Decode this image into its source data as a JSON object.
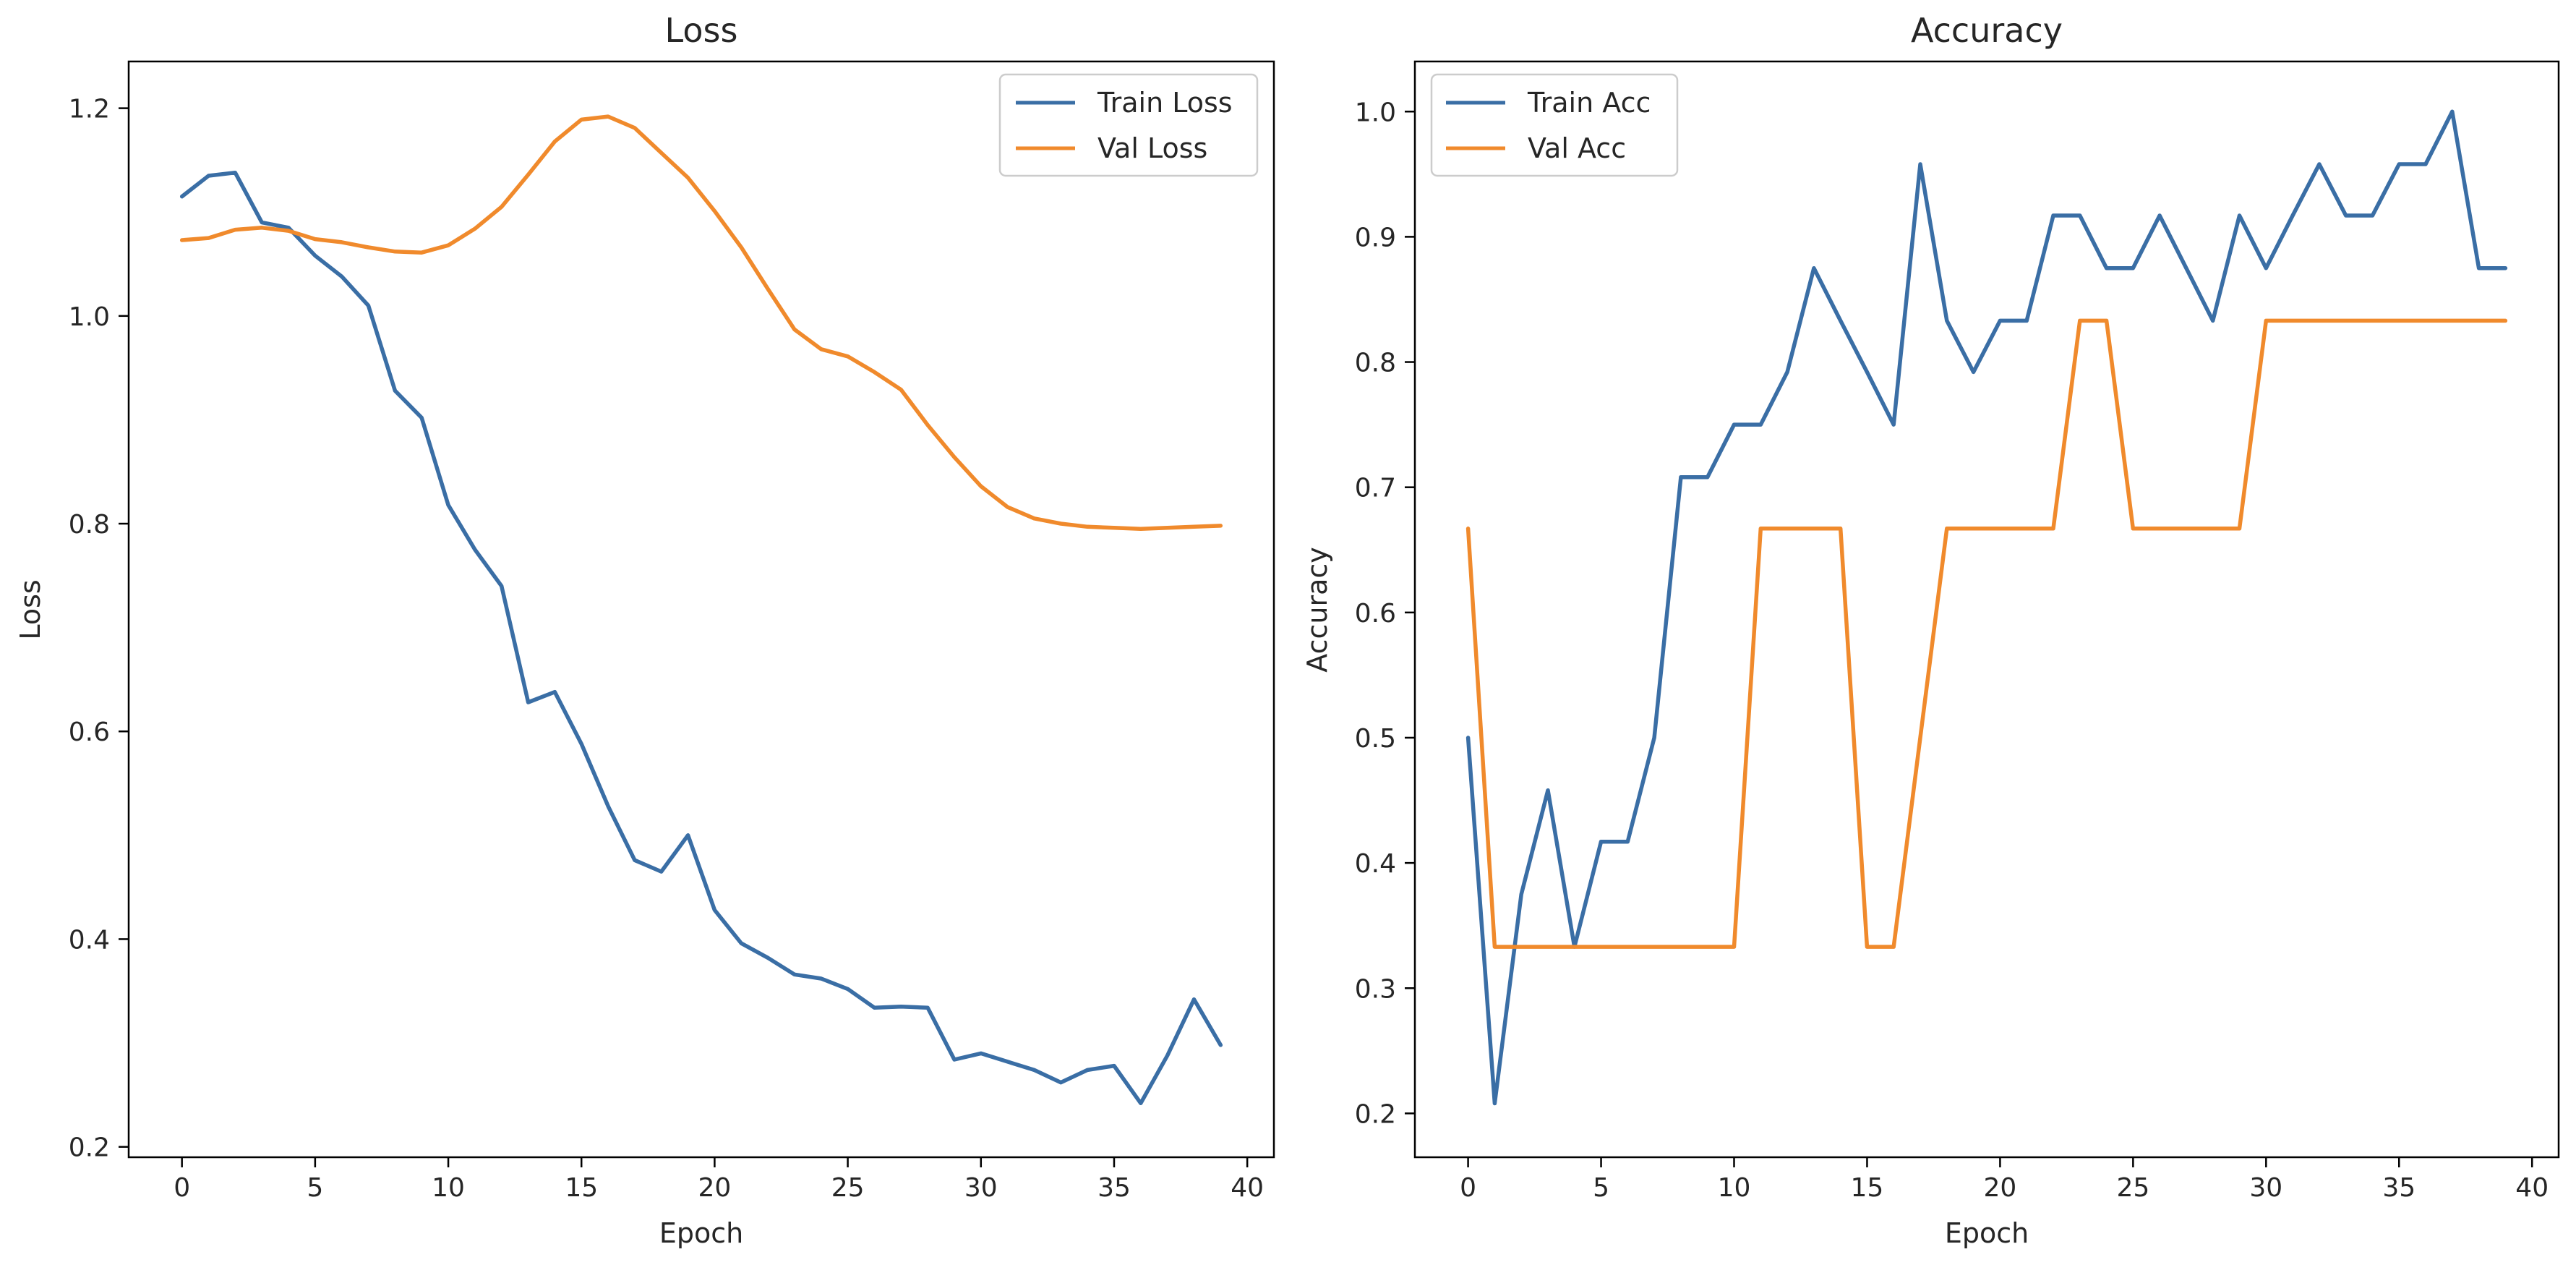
{
  "chart_data": [
    {
      "type": "line",
      "title": "Loss",
      "xlabel": "Epoch",
      "ylabel": "Loss",
      "xlim": [
        -2,
        41
      ],
      "ylim": [
        0.19,
        1.245
      ],
      "grid": false,
      "legend_position": "top-right",
      "x_ticks": [
        0,
        5,
        10,
        15,
        20,
        25,
        30,
        35,
        40
      ],
      "y_ticks": [
        0.2,
        0.4,
        0.6,
        0.8,
        1.0,
        1.2
      ],
      "x_tick_labels": [
        "0",
        "5",
        "10",
        "15",
        "20",
        "25",
        "30",
        "35",
        "40"
      ],
      "y_tick_labels": [
        "0.2",
        "0.4",
        "0.6",
        "0.8",
        "1.0",
        "1.2"
      ],
      "x": [
        0,
        1,
        2,
        3,
        4,
        5,
        6,
        7,
        8,
        9,
        10,
        11,
        12,
        13,
        14,
        15,
        16,
        17,
        18,
        19,
        20,
        21,
        22,
        23,
        24,
        25,
        26,
        27,
        28,
        29,
        30,
        31,
        32,
        33,
        34,
        35,
        36,
        37,
        38,
        39
      ],
      "series": [
        {
          "name": "Train Loss",
          "color": "#3a6ea5",
          "values": [
            1.115,
            1.135,
            1.138,
            1.09,
            1.085,
            1.058,
            1.038,
            1.01,
            0.928,
            0.902,
            0.818,
            0.775,
            0.74,
            0.628,
            0.638,
            0.588,
            0.528,
            0.476,
            0.465,
            0.5,
            0.428,
            0.396,
            0.382,
            0.366,
            0.362,
            0.352,
            0.334,
            0.335,
            0.334,
            0.284,
            0.29,
            0.282,
            0.274,
            0.262,
            0.274,
            0.278,
            0.242,
            0.288,
            0.342,
            0.298
          ]
        },
        {
          "name": "Val Loss",
          "color": "#f08a2c",
          "values": [
            1.073,
            1.075,
            1.083,
            1.085,
            1.082,
            1.074,
            1.071,
            1.066,
            1.062,
            1.061,
            1.068,
            1.084,
            1.105,
            1.136,
            1.168,
            1.189,
            1.192,
            1.181,
            1.157,
            1.133,
            1.101,
            1.066,
            1.026,
            0.987,
            0.968,
            0.961,
            0.946,
            0.929,
            0.895,
            0.864,
            0.836,
            0.816,
            0.805,
            0.8,
            0.797,
            0.796,
            0.795,
            0.796,
            0.797,
            0.798
          ]
        }
      ]
    },
    {
      "type": "line",
      "title": "Accuracy",
      "xlabel": "Epoch",
      "ylabel": "Accuracy",
      "xlim": [
        -2,
        41
      ],
      "ylim": [
        0.165,
        1.04
      ],
      "grid": false,
      "legend_position": "top-left",
      "x_ticks": [
        0,
        5,
        10,
        15,
        20,
        25,
        30,
        35,
        40
      ],
      "y_ticks": [
        0.2,
        0.3,
        0.4,
        0.5,
        0.6,
        0.7,
        0.8,
        0.9,
        1.0
      ],
      "x_tick_labels": [
        "0",
        "5",
        "10",
        "15",
        "20",
        "25",
        "30",
        "35",
        "40"
      ],
      "y_tick_labels": [
        "0.2",
        "0.3",
        "0.4",
        "0.5",
        "0.6",
        "0.7",
        "0.8",
        "0.9",
        "1.0"
      ],
      "x": [
        0,
        1,
        2,
        3,
        4,
        5,
        6,
        7,
        8,
        9,
        10,
        11,
        12,
        13,
        14,
        15,
        16,
        17,
        18,
        19,
        20,
        21,
        22,
        23,
        24,
        25,
        26,
        27,
        28,
        29,
        30,
        31,
        32,
        33,
        34,
        35,
        36,
        37,
        38,
        39
      ],
      "series": [
        {
          "name": "Train Acc",
          "color": "#3a6ea5",
          "values": [
            0.5,
            0.208,
            0.375,
            0.458,
            0.333,
            0.417,
            0.417,
            0.5,
            0.708,
            0.708,
            0.75,
            0.75,
            0.792,
            0.875,
            0.833,
            0.792,
            0.75,
            0.958,
            0.833,
            0.792,
            0.833,
            0.833,
            0.917,
            0.917,
            0.875,
            0.875,
            0.917,
            0.875,
            0.833,
            0.917,
            0.875,
            0.917,
            0.958,
            0.917,
            0.917,
            0.958,
            0.958,
            1.0,
            0.875,
            0.875
          ]
        },
        {
          "name": "Val Acc",
          "color": "#f08a2c",
          "values": [
            0.667,
            0.333,
            0.333,
            0.333,
            0.333,
            0.333,
            0.333,
            0.333,
            0.333,
            0.333,
            0.333,
            0.667,
            0.667,
            0.667,
            0.667,
            0.333,
            0.333,
            0.5,
            0.667,
            0.667,
            0.667,
            0.667,
            0.667,
            0.833,
            0.833,
            0.667,
            0.667,
            0.667,
            0.667,
            0.667,
            0.833,
            0.833,
            0.833,
            0.833,
            0.833,
            0.833,
            0.833,
            0.833,
            0.833,
            0.833
          ]
        }
      ]
    }
  ]
}
